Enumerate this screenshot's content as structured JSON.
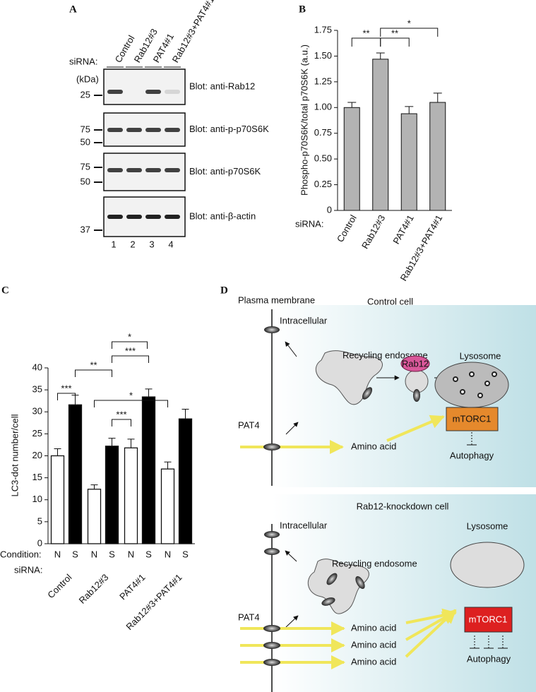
{
  "panel_a": {
    "letter": "A",
    "siRNA_label": "siRNA:",
    "lanes": [
      "Control",
      "Rab12#3",
      "PAT4#1",
      "Rab12#3+PAT4#1"
    ],
    "kda_label": "(kDa)",
    "blots": [
      {
        "label": "Blot: anti-Rab12",
        "markers": [
          25
        ]
      },
      {
        "label": "Blot: anti-p-p70S6K",
        "markers": [
          75,
          50
        ]
      },
      {
        "label": "Blot: anti-p70S6K",
        "markers": [
          75,
          50
        ]
      },
      {
        "label": "Blot: anti-β-actin",
        "markers": [
          37
        ]
      }
    ],
    "lane_numbers": [
      1,
      2,
      3,
      4
    ]
  },
  "chart_data": [
    {
      "type": "bar",
      "letter": "B",
      "y_label": "Phospho-p70S6K/total p70S6K (a.u.)",
      "x_label": "siRNA:",
      "categories": [
        "Control",
        "Rab12#3",
        "PAT4#1",
        "Rab12#3+PAT4#1"
      ],
      "values": [
        1.0,
        1.47,
        0.94,
        1.05
      ],
      "errors": [
        0.05,
        0.06,
        0.07,
        0.09
      ],
      "color": "#b3b3b3",
      "ylim": [
        0,
        1.75
      ],
      "yticks": [
        0,
        0.25,
        {
          "value": 0.5,
          "label": "0.50"
        },
        0.75,
        {
          "value": 1,
          "label": "1.00"
        },
        1.25,
        {
          "value": 1.5,
          "label": "1.50"
        },
        1.75
      ],
      "annotations": [
        "**",
        "**",
        "*"
      ]
    },
    {
      "type": "grouped_bar",
      "letter": "C",
      "y_label": "LC3-dot number/cell",
      "condition_label": "Condition:",
      "x_label": "siRNA:",
      "categories": [
        "Control",
        "Rab12#3",
        "PAT4#1",
        "Rab12#3+PAT4#1"
      ],
      "series": [
        {
          "name": "N",
          "color": "#ffffff",
          "values": [
            20,
            12.4,
            21.8,
            17
          ],
          "errors": [
            1.6,
            1,
            2,
            1.6
          ]
        },
        {
          "name": "S",
          "color": "#000000",
          "values": [
            31.6,
            22.2,
            33.4,
            28.4
          ],
          "errors": [
            2.2,
            1.8,
            1.8,
            2.2
          ]
        }
      ],
      "ylim": [
        0,
        40
      ],
      "yticks": [
        0,
        5,
        10,
        15,
        20,
        25,
        30,
        35,
        40
      ],
      "annotations": [
        "*",
        "***",
        "**",
        "***",
        "*",
        "***"
      ]
    }
  ],
  "panel_d": {
    "letter": "D",
    "membrane_label": "Plasma membrane",
    "top": {
      "title": "Control cell",
      "intracellular": "Intracellular",
      "endosome": "Recycling endosome",
      "rab12": "Rab12",
      "lysosome": "Lysosome",
      "mtorc1": "mTORC1",
      "pat4": "PAT4",
      "amino_acid": "Amino acid",
      "autophagy": "Autophagy"
    },
    "bottom": {
      "title": "Rab12-knockdown cell",
      "intracellular": "Intracellular",
      "endosome": "Recycling endosome",
      "lysosome": "Lysosome",
      "mtorc1": "mTORC1",
      "pat4": "PAT4",
      "amino_acids": [
        "Amino acid",
        "Amino acid",
        "Amino acid"
      ],
      "autophagy": "Autophagy"
    }
  }
}
